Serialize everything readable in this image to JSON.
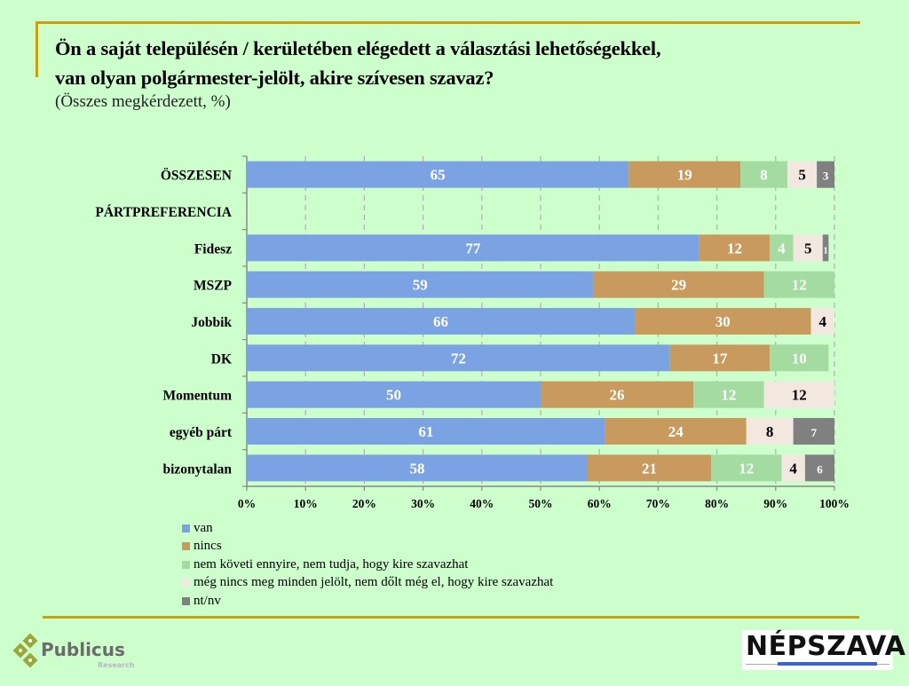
{
  "header": {
    "title_line1": "Ön a saját településén / kerületében elégedett a választási lehetőségekkel,",
    "title_line2": "van olyan polgármester-jelölt, akire szívesen szavaz?",
    "subtitle": "(Összes megkérdezett, %)"
  },
  "chart_data": {
    "type": "bar",
    "orientation": "horizontal",
    "stacked": true,
    "title": "Ön a saját településén / kerületében elégedett a választási lehetőségekkel, van olyan polgármester-jelölt, akire szívesen szavaz?",
    "subtitle": "(Összes megkérdezett, %)",
    "categories": [
      "ÖSSZESEN",
      "PÁRTPREFERENCIA",
      "Fidesz",
      "MSZP",
      "Jobbik",
      "DK",
      "Momentum",
      "egyéb párt",
      "bizonytalan"
    ],
    "series": [
      {
        "name": "van",
        "color": "#7ba3e3",
        "label_color": "#ffffff",
        "values": [
          65,
          null,
          77,
          59,
          66,
          72,
          50,
          61,
          58
        ]
      },
      {
        "name": "nincs",
        "color": "#c99a5e",
        "label_color": "#ffffff",
        "values": [
          19,
          null,
          12,
          29,
          30,
          17,
          26,
          24,
          21
        ]
      },
      {
        "name": "nem követi ennyire, nem tudja, hogy kire szavazhat",
        "color": "#a3dba0",
        "label_color": "#ffffff",
        "values": [
          8,
          null,
          4,
          12,
          0,
          10,
          12,
          0,
          12
        ]
      },
      {
        "name": "még nincs meg minden jelölt, nem dőlt még el, hogy kire szavazhat",
        "color": "#f3e8df",
        "label_color": "#000000",
        "values": [
          5,
          null,
          5,
          0,
          4,
          0,
          12,
          8,
          4
        ]
      },
      {
        "name": "nt/nv",
        "color": "#808080",
        "label_color": "#ffffff",
        "values": [
          3,
          null,
          1,
          0,
          0,
          0,
          0,
          7,
          6
        ]
      }
    ],
    "x_ticks": [
      "0%",
      "10%",
      "20%",
      "30%",
      "40%",
      "50%",
      "60%",
      "70%",
      "80%",
      "90%",
      "100%"
    ],
    "xlim": [
      0,
      100
    ],
    "grid": "vertical dashed",
    "legend_position": "bottom-left"
  },
  "logos": {
    "publicus_name": "Publicus",
    "publicus_sub": "Research",
    "nepszava": "NÉPSZAVA"
  }
}
